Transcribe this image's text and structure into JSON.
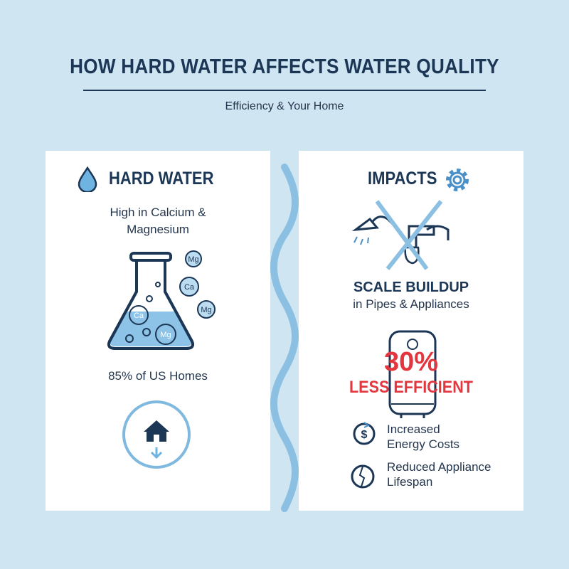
{
  "header": {
    "title": "HOW HARD WATER AFFECTS WATER QUALITY",
    "subtitle": "Efficiency & Your Home"
  },
  "left_panel": {
    "heading": "HARD WATER",
    "description": "High in Calcium & Magnesium",
    "molecules": [
      "Mg",
      "Ca",
      "Mg",
      "Ca",
      "Mg"
    ],
    "stat": "85% of US Homes"
  },
  "right_panel": {
    "heading": "IMPACTS",
    "impact": {
      "title": "SCALE BUILDUP",
      "subtitle": "in Pipes & Appliances"
    },
    "efficiency": {
      "value": "30%",
      "label": "LESS EFFICIENT"
    },
    "effects": [
      "Increased Energy Costs",
      "Reduced Appliance Lifespan"
    ]
  }
}
